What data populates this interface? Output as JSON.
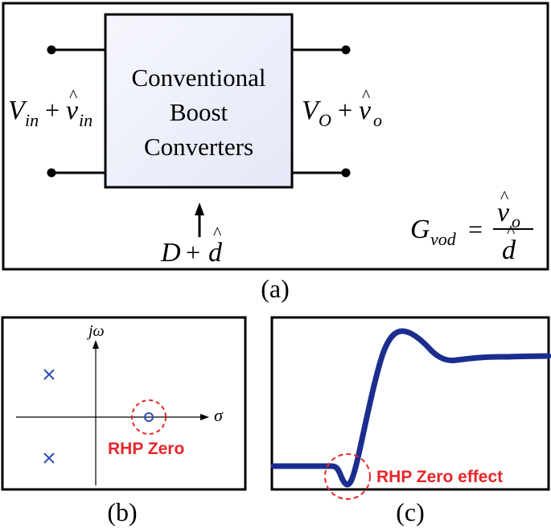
{
  "panel_a": {
    "block_line1": "Conventional",
    "block_line2": "Boost",
    "block_line3": "Converters",
    "input": {
      "var": "V",
      "sub": "in",
      "plus": "+",
      "hat_var": "v",
      "hat_sub": "in"
    },
    "output": {
      "var": "V",
      "sub": "O",
      "plus": "+",
      "hat_var": "v",
      "hat_sub": "o"
    },
    "duty": {
      "var": "D",
      "plus": "+",
      "hat_var": "d"
    },
    "transfer": {
      "lhs": "G",
      "lhs_sub": "vod",
      "eq": "=",
      "num": "v",
      "num_sub": "o",
      "den": "d"
    },
    "caption": "(a)"
  },
  "panel_b": {
    "axis_y": "jω",
    "axis_x": "σ",
    "zero_label": "RHP Zero",
    "caption": "(b)"
  },
  "panel_c": {
    "effect_label": "RHP Zero effect",
    "caption": "(c)"
  },
  "colors": {
    "red": "#e8262b",
    "blue": "#1b2e8f",
    "pole_blue": "#2c4fb5",
    "block_fill": "#eef0fb"
  }
}
